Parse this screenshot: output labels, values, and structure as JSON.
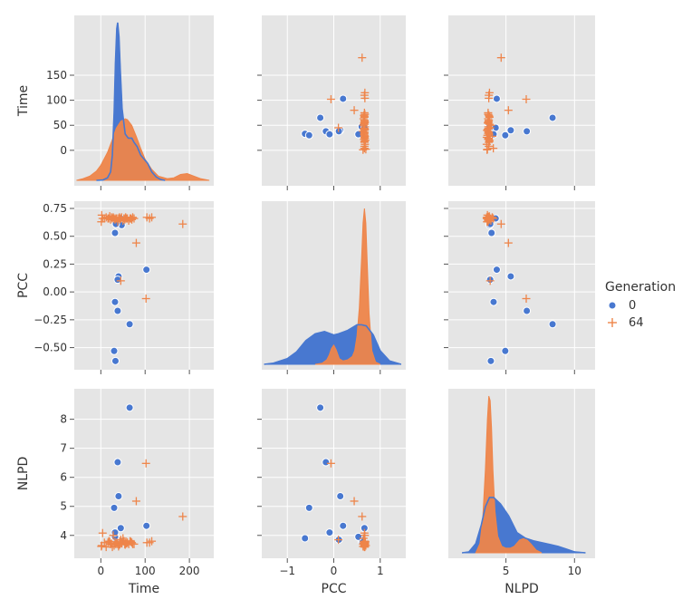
{
  "chart_data": {
    "type": "pairplot",
    "variables": [
      "Time",
      "PCC",
      "NLPD"
    ],
    "legend": {
      "title": "Generation",
      "entries": [
        {
          "label": "0",
          "color": "#4878d0",
          "marker": "circle"
        },
        {
          "label": "64",
          "color": "#ee854a",
          "marker": "plus"
        }
      ],
      "position": "right"
    },
    "axes": {
      "Time": {
        "range": [
          -60,
          255
        ],
        "ticks": [
          0,
          50,
          100,
          150
        ],
        "x_ticks": [
          0,
          100,
          200
        ],
        "label": "Time"
      },
      "PCC": {
        "range": [
          -1.55,
          1.55
        ],
        "y_range": [
          -0.65,
          0.75
        ],
        "ticks": [
          -0.5,
          -0.25,
          0.0,
          0.25,
          0.5,
          0.75
        ],
        "tick_labels": [
          "−0.50",
          "−0.25",
          "0.00",
          "0.25",
          "0.50",
          "0.75"
        ],
        "x_ticks": [
          -1,
          0,
          1
        ],
        "label": "PCC"
      },
      "NLPD": {
        "range": [
          0.8,
          11.5
        ],
        "y_range": [
          3.4,
          8.8
        ],
        "ticks": [
          4,
          5,
          6,
          7,
          8
        ],
        "x_ticks": [
          5,
          10
        ],
        "label": "NLPD"
      }
    },
    "series": [
      {
        "name": "0",
        "Time": [
          103,
          65,
          47,
          45,
          40,
          38,
          38,
          34,
          33,
          32,
          32,
          30
        ],
        "PCC": [
          0.2,
          -0.29,
          0.6,
          0.66,
          0.14,
          -0.17,
          0.11,
          0.61,
          -0.62,
          0.53,
          -0.09,
          -0.53
        ],
        "NLPD": [
          4.33,
          8.4,
          3.8,
          4.25,
          5.35,
          6.52,
          3.85,
          3.85,
          3.9,
          3.95,
          4.1,
          4.95
        ],
        "kde_Time": {
          "x": [
            -10,
            5,
            15,
            22,
            26,
            30,
            33,
            36,
            38,
            41,
            44,
            48,
            55,
            62,
            70,
            75,
            82,
            90,
            98,
            106,
            115,
            125,
            135,
            145
          ],
          "y": [
            0,
            0.5,
            3,
            10,
            30,
            80,
            140,
            180,
            187,
            170,
            130,
            85,
            55,
            50,
            50,
            45,
            40,
            30,
            25,
            20,
            10,
            4,
            1,
            0
          ]
        },
        "kde_PCC": {
          "x": [
            -1.5,
            -1.3,
            -1.0,
            -0.8,
            -0.6,
            -0.4,
            -0.2,
            0.0,
            0.1,
            0.3,
            0.5,
            0.6,
            0.7,
            0.85,
            1.0,
            1.2,
            1.45
          ],
          "y": [
            0,
            0.01,
            0.05,
            0.11,
            0.21,
            0.27,
            0.29,
            0.26,
            0.27,
            0.3,
            0.35,
            0.35,
            0.34,
            0.26,
            0.12,
            0.03,
            0
          ]
        },
        "kde_NLPD": {
          "x": [
            1.8,
            2.3,
            2.8,
            3.2,
            3.5,
            3.8,
            4.1,
            4.6,
            5.2,
            5.8,
            6.4,
            7.0,
            7.6,
            8.2,
            8.8,
            9.4,
            10.0,
            10.8
          ],
          "y": [
            0,
            0.01,
            0.1,
            0.3,
            0.5,
            0.6,
            0.6,
            0.53,
            0.4,
            0.22,
            0.16,
            0.13,
            0.11,
            0.09,
            0.07,
            0.04,
            0.01,
            0
          ]
        }
      },
      {
        "name": "64",
        "Time": [
          185,
          115,
          110,
          104,
          102,
          80,
          75,
          72,
          70,
          68,
          66,
          63,
          60,
          58,
          56,
          55,
          54,
          52,
          50,
          47,
          45,
          44,
          43,
          42,
          40,
          38,
          36,
          34,
          32,
          30,
          28,
          26,
          24,
          22,
          20,
          18,
          16,
          12,
          8,
          4,
          2,
          1
        ],
        "PCC": [
          0.61,
          0.67,
          0.66,
          0.67,
          -0.06,
          0.44,
          0.66,
          0.67,
          0.65,
          0.66,
          0.66,
          0.64,
          0.66,
          0.66,
          0.67,
          0.66,
          0.65,
          0.66,
          0.64,
          0.67,
          0.1,
          0.66,
          0.65,
          0.67,
          0.66,
          0.63,
          0.66,
          0.66,
          0.65,
          0.66,
          0.67,
          0.66,
          0.67,
          0.65,
          0.68,
          0.66,
          0.66,
          0.67,
          0.66,
          0.66,
          0.69,
          0.63
        ],
        "NLPD": [
          4.65,
          3.8,
          3.75,
          3.75,
          6.48,
          5.18,
          3.7,
          3.7,
          3.75,
          3.78,
          3.8,
          3.7,
          3.75,
          3.72,
          3.73,
          3.68,
          3.7,
          3.8,
          3.9,
          3.72,
          3.85,
          3.75,
          3.7,
          3.68,
          3.62,
          3.7,
          3.75,
          3.7,
          3.78,
          3.65,
          4.0,
          3.6,
          3.72,
          3.7,
          3.78,
          3.8,
          3.75,
          3.6,
          3.75,
          4.08,
          3.65,
          3.62
        ],
        "kde_Time": {
          "x": [
            -55,
            -40,
            -25,
            -10,
            0,
            15,
            25,
            35,
            45,
            55,
            60,
            70,
            80,
            90,
            100,
            115,
            130,
            150,
            165,
            180,
            195,
            210,
            225,
            245
          ],
          "y": [
            0,
            2,
            5,
            11,
            18,
            33,
            47,
            62,
            70,
            73,
            72,
            65,
            52,
            38,
            25,
            13,
            5,
            2,
            3,
            7,
            8,
            5,
            2,
            0
          ]
        },
        "kde_PCC": {
          "x": [
            -0.4,
            -0.25,
            -0.15,
            -0.1,
            -0.05,
            0.0,
            0.05,
            0.12,
            0.2,
            0.3,
            0.4,
            0.45,
            0.5,
            0.55,
            0.6,
            0.63,
            0.66,
            0.69,
            0.72,
            0.76,
            0.82,
            0.9,
            1.0
          ],
          "y": [
            0,
            0.01,
            0.04,
            0.08,
            0.14,
            0.17,
            0.13,
            0.05,
            0.03,
            0.04,
            0.07,
            0.12,
            0.25,
            0.5,
            0.95,
            1.25,
            1.38,
            1.25,
            0.9,
            0.45,
            0.12,
            0.02,
            0
          ]
        },
        "kde_NLPD": {
          "x": [
            2.8,
            3.1,
            3.3,
            3.5,
            3.65,
            3.75,
            3.85,
            3.95,
            4.05,
            4.2,
            4.4,
            4.7,
            5.0,
            5.3,
            5.6,
            6.0,
            6.4,
            6.8,
            7.2,
            7.6
          ],
          "y": [
            0,
            0.1,
            0.35,
            0.9,
            1.45,
            1.7,
            1.65,
            1.35,
            0.9,
            0.45,
            0.18,
            0.07,
            0.05,
            0.05,
            0.07,
            0.14,
            0.16,
            0.1,
            0.03,
            0
          ]
        }
      }
    ]
  }
}
